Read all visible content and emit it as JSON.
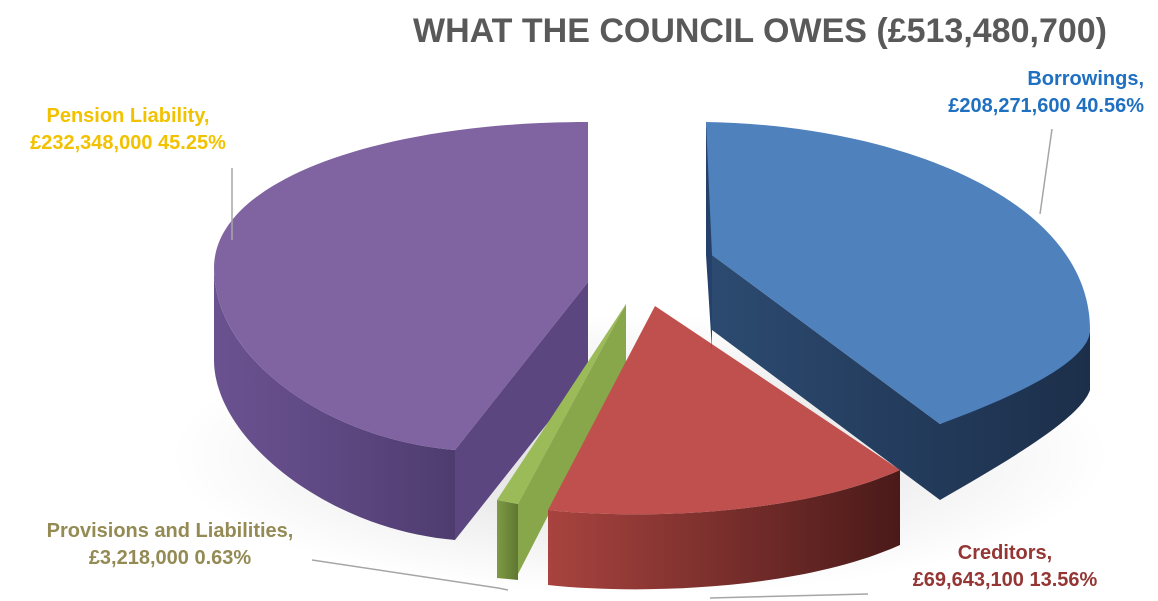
{
  "chart_data": {
    "type": "pie",
    "title": "WHAT THE COUNCIL OWES (£513,480,700)",
    "slices": [
      {
        "name": "Borrowings,",
        "value_text": "£208,271,600 40.56%",
        "value": 208271600,
        "percent": 40.56,
        "color": "#4f81bd",
        "label_color": "#1f70c1"
      },
      {
        "name": "Creditors,",
        "value_text": "£69,643,100 13.56%",
        "value": 69643100,
        "percent": 13.56,
        "color": "#c0504d",
        "label_color": "#943634"
      },
      {
        "name": "Provisions and Liabilities,",
        "value_text": "£3,218,000 0.63%",
        "value": 3218000,
        "percent": 0.63,
        "color": "#9bbb59",
        "label_color": "#948a54"
      },
      {
        "name": "Pension Liability,",
        "value_text": "£232,348,000 45.25%",
        "value": 232348000,
        "percent": 45.25,
        "color": "#8064a2",
        "label_color": "#f2c200"
      }
    ],
    "style": "3d-exploded"
  }
}
